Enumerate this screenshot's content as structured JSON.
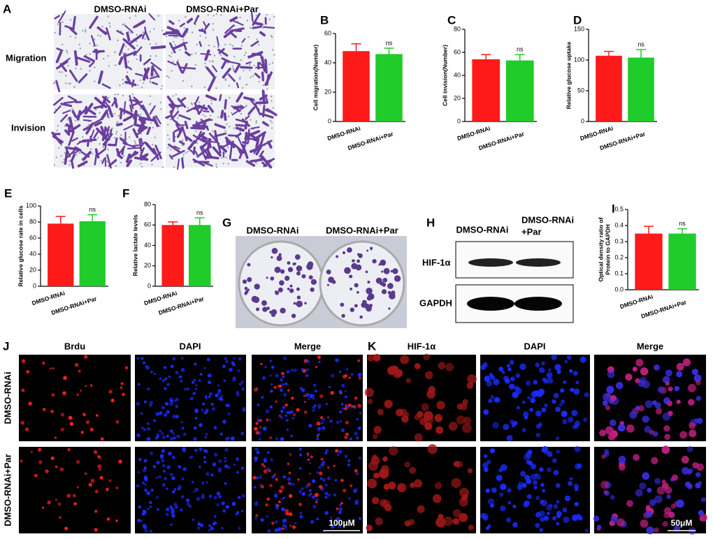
{
  "chart_data": [
    {
      "type": "bar",
      "panel": "B",
      "ylabel": "Cell migration(Number)",
      "categories": [
        "DMSO-RNAi",
        "DMSO-RNAi+Par"
      ],
      "values": [
        48,
        46
      ],
      "errors": [
        5,
        4
      ],
      "colors": [
        "#ff1a1a",
        "#1fcc2a"
      ],
      "ylim": [
        0,
        60
      ],
      "yticks": [
        0,
        20,
        40,
        60
      ],
      "annotation": "ns"
    },
    {
      "type": "bar",
      "panel": "C",
      "ylabel": "Cell invision(Number)",
      "categories": [
        "DMSO-RNAi",
        "DMSO-RNAi+Par"
      ],
      "values": [
        54,
        53
      ],
      "errors": [
        4,
        5
      ],
      "colors": [
        "#ff1a1a",
        "#1fcc2a"
      ],
      "ylim": [
        0,
        80
      ],
      "yticks": [
        0,
        20,
        40,
        60,
        80
      ],
      "annotation": "ns"
    },
    {
      "type": "bar",
      "panel": "D",
      "ylabel": "Relative glucose uptake",
      "categories": [
        "DMSO-RNAi",
        "DMSO-RNAi+Par"
      ],
      "values": [
        107,
        104
      ],
      "errors": [
        7,
        13
      ],
      "colors": [
        "#ff1a1a",
        "#1fcc2a"
      ],
      "ylim": [
        0,
        150
      ],
      "yticks": [
        0,
        50,
        100,
        150
      ],
      "annotation": "ns"
    },
    {
      "type": "bar",
      "panel": "E",
      "ylabel": "Relative glucose rate in cells",
      "categories": [
        "DMSO-RNAi",
        "DMSO-RNAi+Par"
      ],
      "values": [
        78,
        81
      ],
      "errors": [
        9,
        8
      ],
      "colors": [
        "#ff1a1a",
        "#1fcc2a"
      ],
      "ylim": [
        0,
        100
      ],
      "yticks": [
        0,
        20,
        40,
        60,
        80,
        100
      ],
      "annotation": "ns"
    },
    {
      "type": "bar",
      "panel": "F",
      "ylabel": "Relative lactate levels",
      "categories": [
        "DMSO-RNAi",
        "DMSO-RNAi+Par"
      ],
      "values": [
        60,
        60
      ],
      "errors": [
        3,
        7
      ],
      "colors": [
        "#ff1a1a",
        "#1fcc2a"
      ],
      "ylim": [
        0,
        80
      ],
      "yticks": [
        0,
        20,
        40,
        60,
        80
      ],
      "annotation": "ns"
    },
    {
      "type": "bar",
      "panel": "I",
      "ylabel": [
        "Optical density ratio of",
        "Protein to GAPDH"
      ],
      "categories": [
        "DMSO-RNAi",
        "DMSO-RNAi+Par"
      ],
      "values": [
        0.35,
        0.35
      ],
      "errors": [
        0.045,
        0.03
      ],
      "colors": [
        "#ff1a1a",
        "#1fcc2a"
      ],
      "ylim": [
        0,
        0.5
      ],
      "yticks": [
        {
          "value": 0,
          "label": "0.0"
        },
        0.1,
        0.2,
        0.3,
        0.4,
        0.5
      ],
      "annotation": "ns"
    }
  ],
  "panel_a": {
    "label": "A",
    "columns": [
      "DMSO-RNAi",
      "DMSO-RNAi+Par"
    ],
    "rows": [
      "Migration",
      "Invision"
    ]
  },
  "panel_g": {
    "label": "G",
    "columns": [
      "DMSO-RNAi",
      "DMSO-RNAi+Par"
    ]
  },
  "panel_h": {
    "label": "H",
    "column_1": "DMSO-RNAi",
    "column_2": [
      "DMSO-RNAi",
      "+Par"
    ],
    "rows": [
      "HIF-1α",
      "GAPDH"
    ]
  },
  "panel_j": {
    "label": "J",
    "columns": [
      "Brdu",
      "DAPI",
      "Merge"
    ],
    "rows": [
      "DMSO-RNAi",
      "DMSO-RNAi+Par"
    ],
    "scale_bar": "100μM"
  },
  "panel_k": {
    "label": "K",
    "columns": [
      "HIF-1α",
      "DAPI",
      "Merge"
    ],
    "scale_bar": "50μM"
  }
}
